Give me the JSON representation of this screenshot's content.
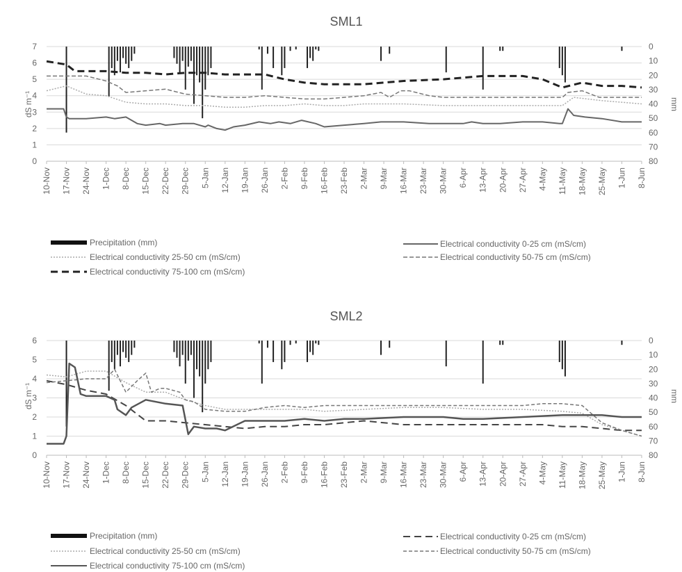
{
  "chart_data": [
    {
      "type": "line",
      "title": "SML1",
      "ylabel": "dS m⁻¹",
      "y2label": "mm",
      "ylim": [
        0,
        7
      ],
      "y2lim": [
        0,
        80
      ],
      "y2_inverted": true,
      "yticks": [
        "0",
        "1",
        "2",
        "3",
        "4",
        "5",
        "6",
        "7"
      ],
      "y2ticks": [
        "0",
        "10",
        "20",
        "30",
        "40",
        "50",
        "60",
        "70",
        "80"
      ],
      "xticks": [
        "10-Nov",
        "17-Nov",
        "24-Nov",
        "1-Dec",
        "8-Dec",
        "15-Dec",
        "22-Dec",
        "29-Dec",
        "5-Jan",
        "12-Jan",
        "19-Jan",
        "26-Jan",
        "2-Feb",
        "9-Feb",
        "16-Feb",
        "23-Feb",
        "2-Mar",
        "9-Mar",
        "16-Mar",
        "23-Mar",
        "30-Mar",
        "6-Apr",
        "13-Apr",
        "20-Apr",
        "27-Apr",
        "4-May",
        "11-May",
        "18-May",
        "25-May",
        "1-Jun",
        "8-Jun"
      ],
      "grid": true,
      "legend_position": "bottom",
      "x_days": [
        0,
        7,
        14,
        21,
        28,
        35,
        42,
        49,
        56,
        63,
        70,
        77,
        84,
        91,
        98,
        105,
        112,
        119,
        126,
        133,
        140,
        147,
        154,
        161,
        168,
        175,
        182,
        189,
        196,
        203,
        210
      ],
      "precipitation": {
        "name": "Precipitation (mm)",
        "days": [
          7,
          22,
          23,
          24,
          25,
          26,
          27,
          28,
          29,
          30,
          31,
          45,
          46,
          47,
          48,
          49,
          50,
          51,
          52,
          53,
          54,
          55,
          56,
          57,
          58,
          75,
          76,
          78,
          80,
          83,
          84,
          86,
          88,
          92,
          93,
          94,
          95,
          96,
          118,
          121,
          141,
          154,
          160,
          161,
          181,
          182,
          183,
          203
        ],
        "values": [
          60,
          35,
          15,
          20,
          10,
          18,
          8,
          12,
          15,
          10,
          5,
          8,
          12,
          18,
          10,
          30,
          14,
          10,
          40,
          20,
          25,
          50,
          30,
          20,
          15,
          2,
          30,
          5,
          15,
          20,
          15,
          3,
          2,
          15,
          8,
          10,
          2,
          3,
          10,
          5,
          18,
          30,
          3,
          3,
          15,
          20,
          25,
          3
        ]
      },
      "series": [
        {
          "name": "Electrical conductivity 0-25 cm (mS/cm)",
          "style": "solid",
          "x": [
            0,
            6,
            7,
            8,
            14,
            21,
            24,
            28,
            32,
            35,
            40,
            42,
            48,
            52,
            56,
            57,
            60,
            63,
            66,
            70,
            75,
            79,
            82,
            86,
            90,
            95,
            98,
            105,
            112,
            118,
            126,
            135,
            140,
            147,
            150,
            154,
            160,
            168,
            175,
            181,
            182,
            184,
            186,
            190,
            196,
            203,
            210
          ],
          "values": [
            3.2,
            3.2,
            2.7,
            2.6,
            2.6,
            2.7,
            2.6,
            2.7,
            2.3,
            2.2,
            2.3,
            2.2,
            2.3,
            2.3,
            2.1,
            2.2,
            2.0,
            1.9,
            2.1,
            2.2,
            2.4,
            2.3,
            2.4,
            2.3,
            2.5,
            2.3,
            2.1,
            2.2,
            2.3,
            2.4,
            2.4,
            2.3,
            2.3,
            2.3,
            2.4,
            2.3,
            2.3,
            2.4,
            2.4,
            2.3,
            2.3,
            3.2,
            2.8,
            2.7,
            2.6,
            2.4,
            2.4
          ]
        },
        {
          "name": "Electrical conductivity 25-50 cm (mS/cm)",
          "style": "dotted",
          "x": [
            0,
            7,
            14,
            21,
            28,
            35,
            42,
            49,
            56,
            63,
            70,
            77,
            84,
            91,
            98,
            105,
            112,
            126,
            140,
            154,
            168,
            182,
            186,
            196,
            210
          ],
          "values": [
            4.3,
            4.6,
            4.1,
            4.0,
            3.6,
            3.5,
            3.5,
            3.4,
            3.4,
            3.3,
            3.3,
            3.4,
            3.4,
            3.5,
            3.4,
            3.4,
            3.5,
            3.5,
            3.4,
            3.4,
            3.4,
            3.4,
            3.9,
            3.7,
            3.5
          ]
        },
        {
          "name": "Electrical conductivity 50-75 cm (mS/cm)",
          "style": "dashed",
          "x": [
            0,
            7,
            14,
            21,
            25,
            28,
            35,
            42,
            49,
            56,
            63,
            70,
            77,
            84,
            91,
            98,
            105,
            112,
            118,
            121,
            125,
            128,
            135,
            140,
            147,
            154,
            161,
            168,
            175,
            182,
            184,
            189,
            195,
            210
          ],
          "values": [
            5.2,
            5.2,
            5.2,
            4.9,
            4.6,
            4.2,
            4.3,
            4.4,
            4.1,
            4.0,
            3.9,
            3.9,
            4.0,
            3.9,
            3.8,
            3.8,
            3.9,
            4.0,
            4.2,
            3.9,
            4.3,
            4.3,
            4.0,
            3.9,
            3.9,
            3.9,
            3.9,
            3.9,
            3.9,
            3.9,
            4.2,
            4.3,
            3.9,
            3.9
          ]
        },
        {
          "name": "Electrical conductivity 75-100 cm (mS/cm)",
          "style": "bold-dashed",
          "x": [
            0,
            7,
            10,
            14,
            21,
            28,
            35,
            42,
            49,
            56,
            63,
            70,
            77,
            84,
            91,
            98,
            112,
            126,
            140,
            154,
            168,
            175,
            182,
            189,
            196,
            203,
            210
          ],
          "values": [
            6.1,
            5.9,
            5.5,
            5.5,
            5.5,
            5.4,
            5.4,
            5.3,
            5.4,
            5.4,
            5.3,
            5.3,
            5.3,
            5.0,
            4.8,
            4.7,
            4.7,
            4.9,
            5.0,
            5.2,
            5.2,
            5.0,
            4.5,
            4.8,
            4.6,
            4.6,
            4.5
          ]
        }
      ]
    },
    {
      "type": "line",
      "title": "SML2",
      "ylabel": "dS m⁻¹",
      "y2label": "mm",
      "ylim": [
        0,
        6
      ],
      "y2lim": [
        0,
        80
      ],
      "y2_inverted": true,
      "yticks": [
        "0",
        "1",
        "2",
        "3",
        "4",
        "5",
        "6"
      ],
      "y2ticks": [
        "0",
        "10",
        "20",
        "30",
        "40",
        "50",
        "60",
        "70",
        "80"
      ],
      "xticks": [
        "10-Nov",
        "17-Nov",
        "24-Nov",
        "1-Dec",
        "8-Dec",
        "15-Dec",
        "22-Dec",
        "29-Dec",
        "5-Jan",
        "12-Jan",
        "19-Jan",
        "26-Jan",
        "2-Feb",
        "9-Feb",
        "16-Feb",
        "23-Feb",
        "2-Mar",
        "9-Mar",
        "16-Mar",
        "23-Mar",
        "30-Mar",
        "6-Apr",
        "13-Apr",
        "20-Apr",
        "27-Apr",
        "4-May",
        "11-May",
        "18-May",
        "25-May",
        "1-Jun",
        "8-Jun"
      ],
      "grid": true,
      "legend_position": "bottom",
      "x_days": [
        0,
        7,
        14,
        21,
        28,
        35,
        42,
        49,
        56,
        63,
        70,
        77,
        84,
        91,
        98,
        105,
        112,
        119,
        126,
        133,
        140,
        147,
        154,
        161,
        168,
        175,
        182,
        189,
        196,
        203,
        210
      ],
      "precipitation": {
        "name": "Precipitation (mm)",
        "days": [
          7,
          22,
          23,
          24,
          25,
          26,
          27,
          28,
          29,
          30,
          31,
          45,
          46,
          47,
          48,
          49,
          50,
          51,
          52,
          53,
          54,
          55,
          56,
          57,
          58,
          75,
          76,
          78,
          80,
          83,
          84,
          86,
          88,
          92,
          93,
          94,
          95,
          96,
          118,
          121,
          141,
          154,
          160,
          161,
          181,
          182,
          183,
          203
        ],
        "values": [
          60,
          35,
          15,
          20,
          10,
          18,
          8,
          12,
          15,
          10,
          5,
          8,
          12,
          18,
          10,
          30,
          14,
          10,
          40,
          20,
          25,
          50,
          30,
          20,
          15,
          2,
          30,
          5,
          15,
          20,
          15,
          3,
          2,
          15,
          8,
          10,
          2,
          3,
          10,
          5,
          18,
          30,
          3,
          3,
          15,
          20,
          25,
          3
        ]
      },
      "series": [
        {
          "name": "Electrical conductivity 0-25 cm (mS/cm)",
          "style": "dashed",
          "x": [
            0,
            7,
            14,
            21,
            28,
            35,
            42,
            49,
            56,
            63,
            70,
            77,
            84,
            91,
            98,
            105,
            112,
            126,
            140,
            154,
            168,
            175,
            182,
            189,
            196,
            203,
            210
          ],
          "values": [
            3.9,
            3.7,
            3.4,
            3.2,
            2.6,
            1.8,
            1.8,
            1.7,
            1.6,
            1.5,
            1.4,
            1.5,
            1.5,
            1.6,
            1.6,
            1.7,
            1.8,
            1.6,
            1.6,
            1.6,
            1.6,
            1.6,
            1.5,
            1.5,
            1.4,
            1.3,
            1.3
          ]
        },
        {
          "name": "Electrical conductivity 25-50 cm (mS/cm)",
          "style": "dotted",
          "x": [
            0,
            7,
            14,
            21,
            28,
            35,
            42,
            49,
            56,
            63,
            70,
            77,
            84,
            91,
            98,
            112,
            126,
            140,
            154,
            168,
            182,
            189,
            196,
            203,
            210
          ],
          "values": [
            4.2,
            4.1,
            4.4,
            4.4,
            3.8,
            3.3,
            3.3,
            2.9,
            2.6,
            2.4,
            2.4,
            2.4,
            2.4,
            2.4,
            2.3,
            2.4,
            2.5,
            2.5,
            2.4,
            2.4,
            2.3,
            2.2,
            1.6,
            1.3,
            1.0
          ]
        },
        {
          "name": "Electrical conductivity 50-75 cm (mS/cm)",
          "style": "fine-dashed",
          "x": [
            0,
            7,
            14,
            21,
            24,
            28,
            32,
            35,
            37,
            40,
            42,
            47,
            49,
            52,
            56,
            63,
            70,
            77,
            84,
            91,
            98,
            105,
            112,
            126,
            140,
            154,
            168,
            175,
            182,
            189,
            196,
            203,
            210
          ],
          "values": [
            3.8,
            3.9,
            4.0,
            4.0,
            4.5,
            3.3,
            3.9,
            4.3,
            3.3,
            3.5,
            3.5,
            3.3,
            2.9,
            2.8,
            2.4,
            2.3,
            2.3,
            2.5,
            2.6,
            2.5,
            2.6,
            2.6,
            2.6,
            2.6,
            2.6,
            2.6,
            2.6,
            2.7,
            2.7,
            2.6,
            1.7,
            1.3,
            1.0
          ]
        },
        {
          "name": "Electrical conductivity 75-100 cm (mS/cm)",
          "style": "solid",
          "x": [
            0,
            6,
            7,
            8,
            10,
            12,
            14,
            21,
            24,
            25,
            28,
            30,
            35,
            42,
            48,
            50,
            52,
            56,
            60,
            63,
            70,
            77,
            84,
            91,
            98,
            105,
            112,
            126,
            140,
            147,
            154,
            168,
            182,
            189,
            196,
            203,
            210
          ],
          "values": [
            0.6,
            0.6,
            1.0,
            4.8,
            4.6,
            3.2,
            3.1,
            3.1,
            2.9,
            2.4,
            2.1,
            2.5,
            2.9,
            2.7,
            2.6,
            1.1,
            1.5,
            1.4,
            1.4,
            1.3,
            1.8,
            1.8,
            1.8,
            1.9,
            1.8,
            1.9,
            1.9,
            2.0,
            2.0,
            1.9,
            1.9,
            2.0,
            2.1,
            2.1,
            2.1,
            2.0,
            2.0
          ]
        }
      ]
    }
  ]
}
